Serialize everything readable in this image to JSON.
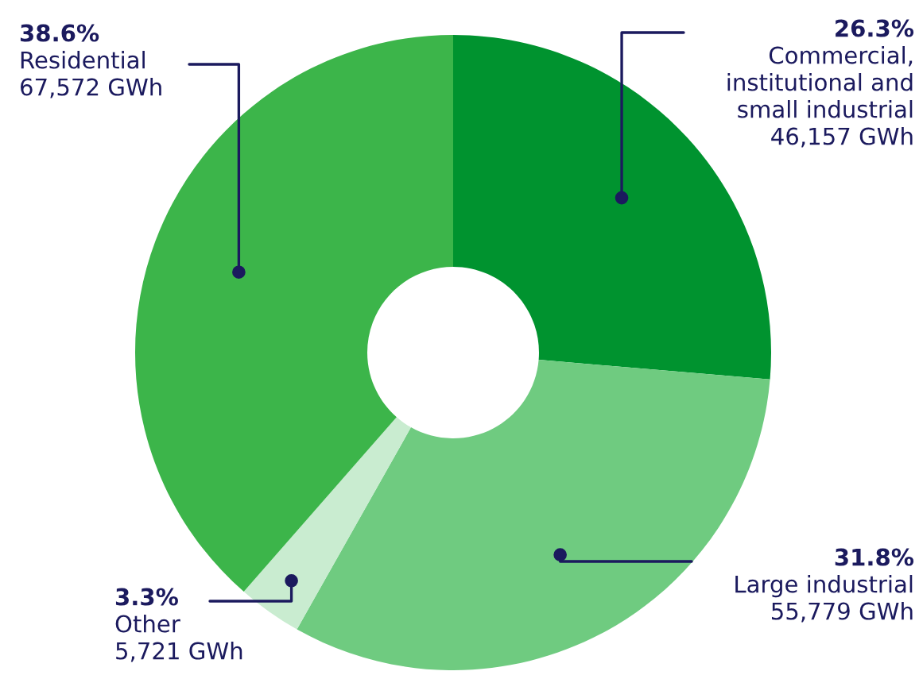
{
  "chart_data": {
    "type": "donut",
    "categories": [
      "Commercial,\ninstitutional and\nsmall industrial",
      "Large industrial",
      "Other",
      "Residential"
    ],
    "values": [
      46157,
      55779,
      5721,
      67572
    ],
    "value_labels": [
      "46,157 GWh",
      "55,779 GWh",
      "5,721 GWh",
      "67,572 GWh"
    ],
    "annotations": [
      "26.3%",
      "31.8%",
      "3.3%",
      "38.6%"
    ],
    "colors": [
      "#00932f",
      "#6fcb80",
      "#c9ecd0",
      "#3cb54a"
    ]
  }
}
